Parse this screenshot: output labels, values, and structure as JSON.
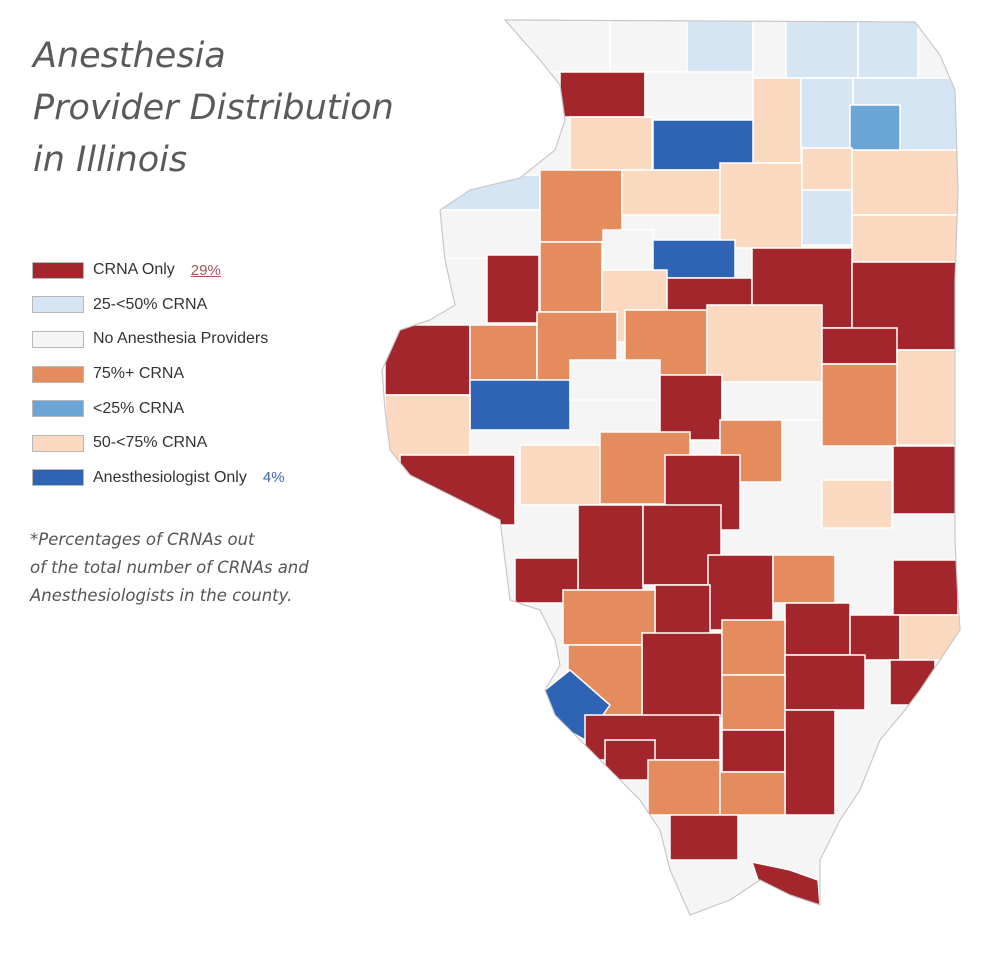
{
  "title": {
    "line1": "Anesthesia",
    "line2": "Provider Distribution",
    "line3": "in Illinois"
  },
  "legend": [
    {
      "label": "CRNA Only",
      "color": "#a3262c",
      "pct": "29%"
    },
    {
      "label": "25-<50% CRNA",
      "color": "#d6e5f3",
      "pct": ""
    },
    {
      "label": "No Anesthesia Providers",
      "color": "#f5f5f5",
      "pct": ""
    },
    {
      "label": "75%+ CRNA",
      "color": "#e48c5e",
      "pct": ""
    },
    {
      "label": "<25% CRNA",
      "color": "#6aa5d6",
      "pct": ""
    },
    {
      "label": "50-<75% CRNA",
      "color": "#fbd8c0",
      "pct": ""
    },
    {
      "label": "Anesthesiologist Only",
      "color": "#2f63b4",
      "pct": "4%"
    }
  ],
  "footnote": {
    "line1": "*Percentages of CRNAs out",
    "line2": "of the total number of CRNAs and",
    "line3": "Anesthesiologists in the county."
  }
}
